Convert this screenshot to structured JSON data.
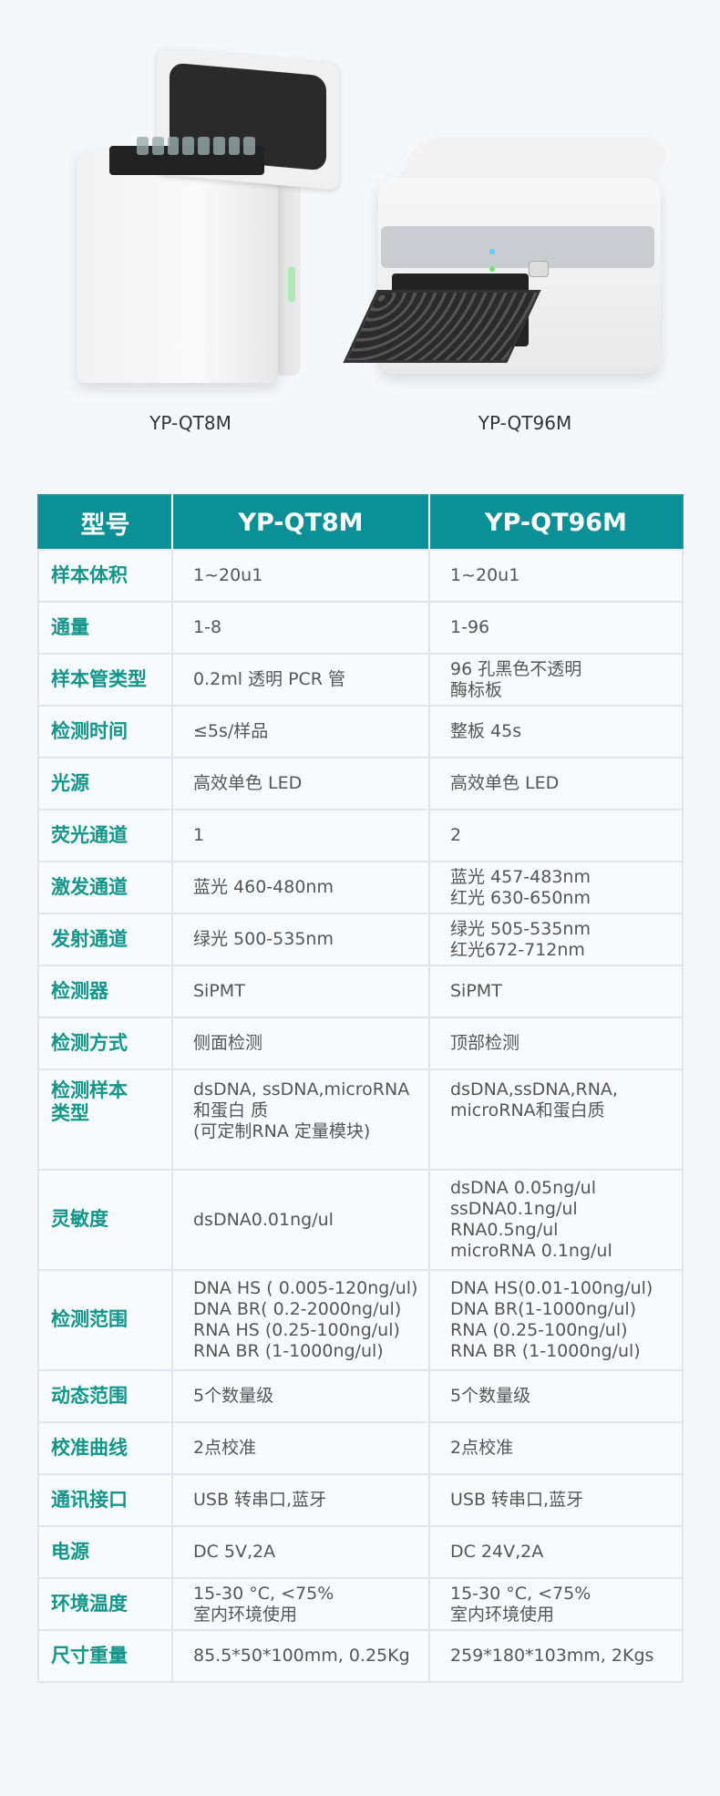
{
  "products": [
    {
      "name": "YP-QT8M"
    },
    {
      "name": "YP-QT96M"
    }
  ],
  "table": {
    "header": [
      "型号",
      "YP-QT8M",
      "YP-QT96M"
    ],
    "rows": [
      {
        "label": "样本体积",
        "a": "1~20u1",
        "b": "1~20u1"
      },
      {
        "label": "通量",
        "a": "1-8",
        "b": "1-96"
      },
      {
        "label": "样本管类型",
        "a": "0.2ml 透明 PCR 管",
        "b": "96 孔黑色不透明\n酶标板"
      },
      {
        "label": "检测时间",
        "a": "≤5s/样品",
        "b": "整板 45s"
      },
      {
        "label": "光源",
        "a": "高效单色 LED",
        "b": "高效单色 LED"
      },
      {
        "label": "荧光通道",
        "a": "1",
        "b": "2"
      },
      {
        "label": "激发通道",
        "a": "蓝光 460-480nm",
        "b": "蓝光 457-483nm\n红光 630-650nm"
      },
      {
        "label": "发射通道",
        "a": "绿光 500-535nm",
        "b": "绿光 505-535nm\n红光672-712nm"
      },
      {
        "label": "检测器",
        "a": "SiPMT",
        "b": "SiPMT"
      },
      {
        "label": "检测方式",
        "a": "侧面检测",
        "b": "顶部检测"
      },
      {
        "label": "检测样本\n类型",
        "a": "dsDNA, ssDNA,microRNA\n和蛋白 质\n(可定制RNA 定量模块)",
        "b": "dsDNA,ssDNA,RNA,\nmicroRNA和蛋白质"
      },
      {
        "label": "灵敏度",
        "a": "dsDNA0.01ng/ul",
        "b": "dsDNA 0.05ng/ul\nssDNA0.1ng/ul\nRNA0.5ng/ul\nmicroRNA 0.1ng/ul"
      },
      {
        "label": "检测范围",
        "a": "DNA HS ( 0.005-120ng/ul)\nDNA BR( 0.2-2000ng/ul)\nRNA HS (0.25-100ng/ul)\nRNA BR (1-1000ng/ul)",
        "b": "DNA HS(0.01-100ng/ul)\nDNA BR(1-1000ng/ul)\nRNA (0.25-100ng/ul)\nRNA BR (1-1000ng/ul)"
      },
      {
        "label": "动态范围",
        "a": "5个数量级",
        "b": "5个数量级"
      },
      {
        "label": "校准曲线",
        "a": "2点校准",
        "b": "2点校准"
      },
      {
        "label": "通讯接口",
        "a": "USB 转串口,蓝牙",
        "b": "USB 转串口,蓝牙"
      },
      {
        "label": "电源",
        "a": "DC 5V,2A",
        "b": "DC 24V,2A"
      },
      {
        "label": "环境温度",
        "a": "15-30 °C, <75%\n室内环境使用",
        "b": "15-30 °C, <75%\n室内环境使用"
      },
      {
        "label": "尺寸重量",
        "a": "85.5*50*100mm, 0.25Kg",
        "b": "259*180*103mm, 2Kgs"
      }
    ]
  },
  "colors": {
    "header_bg": "#0c9097",
    "label_text": "#14958a",
    "body_text": "#555555"
  }
}
